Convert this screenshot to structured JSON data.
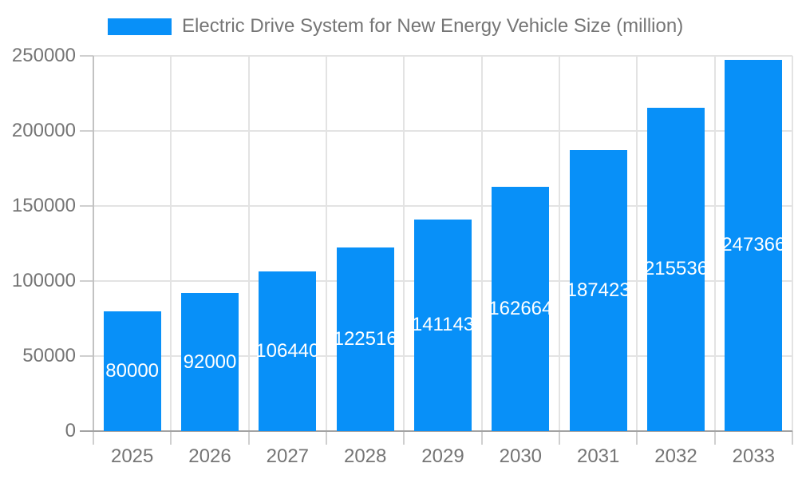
{
  "legend": {
    "label": "Electric Drive System for New Energy Vehicle Size (million)"
  },
  "chart_data": {
    "type": "bar",
    "title": "Electric Drive System for New Energy Vehicle Size (million)",
    "series_name": "Electric Drive System for New Energy Vehicle Size (million)",
    "categories": [
      "2025",
      "2026",
      "2027",
      "2028",
      "2029",
      "2030",
      "2031",
      "2032",
      "2033"
    ],
    "values": [
      80000,
      92000,
      106440,
      122516,
      141143,
      162664,
      187423,
      215536,
      247366
    ],
    "xlabel": "",
    "ylabel": "",
    "ylim": [
      0,
      250000
    ],
    "y_ticks": [
      0,
      50000,
      100000,
      150000,
      200000,
      250000
    ],
    "grid": true,
    "legend_position": "top",
    "bar_color": "#0890f8",
    "value_label_color": "#ffffff",
    "axis_text_color": "#757575"
  }
}
